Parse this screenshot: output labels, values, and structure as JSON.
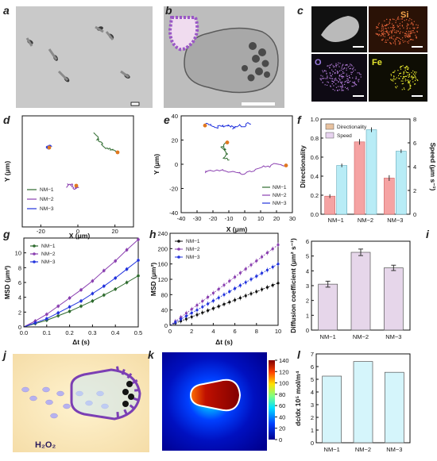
{
  "panels": {
    "a": "a",
    "b": "b",
    "c": "c",
    "d": "d",
    "e": "e",
    "f": "f",
    "g": "g",
    "h": "h",
    "i": "i",
    "j": "j",
    "k": "k",
    "l": "l"
  },
  "eds": {
    "si": "Si",
    "o": "O",
    "fe": "Fe"
  },
  "schematic": {
    "label": "H₂O₂"
  },
  "colorbar": {
    "ticks": [
      "140",
      "120",
      "100",
      "80",
      "60",
      "40",
      "20",
      "0"
    ]
  },
  "colors": {
    "nm1": "#2e6b2e",
    "nm2": "#8a3fb0",
    "nm3": "#2233dd",
    "bar_pink": "#f5a3a3",
    "bar_blue": "#b8ecf6",
    "bar_lilac": "#e6d6ea",
    "bar_cyan": "#d5f5fb"
  },
  "chart_data": [
    {
      "id": "d",
      "type": "scatter",
      "xlabel": "X (μm)",
      "ylabel": "Y (μm)",
      "xticks": [
        "-20",
        "0",
        "20"
      ],
      "xlim": [
        -30,
        30
      ],
      "ylim": [
        -40,
        40
      ],
      "legend": [
        "NM−1",
        "NM−2",
        "NM−3"
      ]
    },
    {
      "id": "e",
      "type": "line",
      "xlabel": "X (μm)",
      "ylabel": "Y (μm)",
      "xticks": [
        "-40",
        "-30",
        "-20",
        "-10",
        "0",
        "10",
        "20",
        "30"
      ],
      "yticks": [
        "40",
        "20",
        "0",
        "-20",
        "-40"
      ],
      "xlim": [
        -40,
        30
      ],
      "ylim": [
        -40,
        40
      ],
      "legend": [
        "NM−1",
        "NM−2",
        "NM−3"
      ]
    },
    {
      "id": "f",
      "type": "bar",
      "categories": [
        "NM−1",
        "NM−2",
        "NM−3"
      ],
      "series": [
        {
          "name": "Directionality",
          "values": [
            0.19,
            0.76,
            0.38
          ],
          "errors": [
            0.02,
            0.03,
            0.03
          ]
        },
        {
          "name": "Speed",
          "values": [
            4.1,
            7.1,
            5.3
          ],
          "errors": [
            0.15,
            0.2,
            0.15
          ]
        }
      ],
      "ylabel": "Directionality",
      "y2label": "Speed (μm s⁻¹)",
      "ylim": [
        0,
        1.0
      ],
      "y2lim": [
        0,
        8
      ],
      "yticks": [
        "0.0",
        "0.2",
        "0.4",
        "0.6",
        "0.8",
        "1.0"
      ],
      "y2ticks": [
        "0",
        "2",
        "4",
        "6",
        "8"
      ]
    },
    {
      "id": "g",
      "type": "line",
      "xlabel": "Δt (s)",
      "ylabel": "MSD (μm²)",
      "xticks": [
        "0.0",
        "0.1",
        "0.2",
        "0.3",
        "0.4",
        "0.5"
      ],
      "yticks": [
        "0",
        "2",
        "4",
        "6",
        "8",
        "10"
      ],
      "xlim": [
        0,
        0.5
      ],
      "ylim": [
        0,
        12
      ],
      "legend": [
        "NM−1",
        "NM−2",
        "NM−3"
      ],
      "x": [
        0.05,
        0.1,
        0.15,
        0.2,
        0.25,
        0.3,
        0.35,
        0.4,
        0.45,
        0.5
      ],
      "series": [
        {
          "name": "NM−1",
          "values": [
            0.45,
            0.9,
            1.5,
            2.1,
            2.8,
            3.5,
            4.3,
            5.1,
            6.0,
            6.9
          ]
        },
        {
          "name": "NM−2",
          "values": [
            0.8,
            1.7,
            2.8,
            3.9,
            5.0,
            6.2,
            7.6,
            8.9,
            10.4,
            11.8
          ]
        },
        {
          "name": "NM−3",
          "values": [
            0.55,
            1.1,
            1.9,
            2.7,
            3.5,
            4.5,
            5.5,
            6.6,
            7.8,
            9.0
          ]
        }
      ]
    },
    {
      "id": "h",
      "type": "line",
      "xlabel": "Δt (s)",
      "ylabel": "MSD (μm²)",
      "xticks": [
        "0",
        "2",
        "4",
        "6",
        "8",
        "10"
      ],
      "yticks": [
        "0",
        "40",
        "80",
        "120",
        "160",
        "200",
        "240"
      ],
      "xlim": [
        0,
        10
      ],
      "ylim": [
        0,
        240
      ],
      "legend": [
        "NM−1",
        "NM−2",
        "NM−3"
      ],
      "x": [
        0.5,
        1,
        1.5,
        2,
        2.5,
        3,
        3.5,
        4,
        4.5,
        5,
        5.5,
        6,
        6.5,
        7,
        7.5,
        8,
        8.5,
        9,
        9.5,
        10
      ],
      "series": [
        {
          "name": "NM−1",
          "slope": 11.0
        },
        {
          "name": "NM−2",
          "slope": 21.0
        },
        {
          "name": "NM−3",
          "slope": 16.0
        }
      ]
    },
    {
      "id": "i",
      "type": "bar",
      "categories": [
        "NM−1",
        "NM−2",
        "NM−3"
      ],
      "values": [
        3.1,
        5.25,
        4.2
      ],
      "errors": [
        0.2,
        0.22,
        0.18
      ],
      "ylabel": "Diffusion coefficient (μm² s⁻¹)",
      "yticks": [
        "0",
        "1",
        "2",
        "3",
        "4",
        "5",
        "6"
      ],
      "ylim": [
        0,
        6
      ]
    },
    {
      "id": "l",
      "type": "bar",
      "categories": [
        "NM−1",
        "NM−2",
        "NM−3"
      ],
      "values": [
        5.25,
        6.4,
        5.55
      ],
      "ylabel": "dc/dx 10⁵ mol/m⁴",
      "yticks": [
        "0",
        "1",
        "2",
        "3",
        "4",
        "5",
        "6",
        "7"
      ],
      "ylim": [
        0,
        7
      ]
    }
  ]
}
